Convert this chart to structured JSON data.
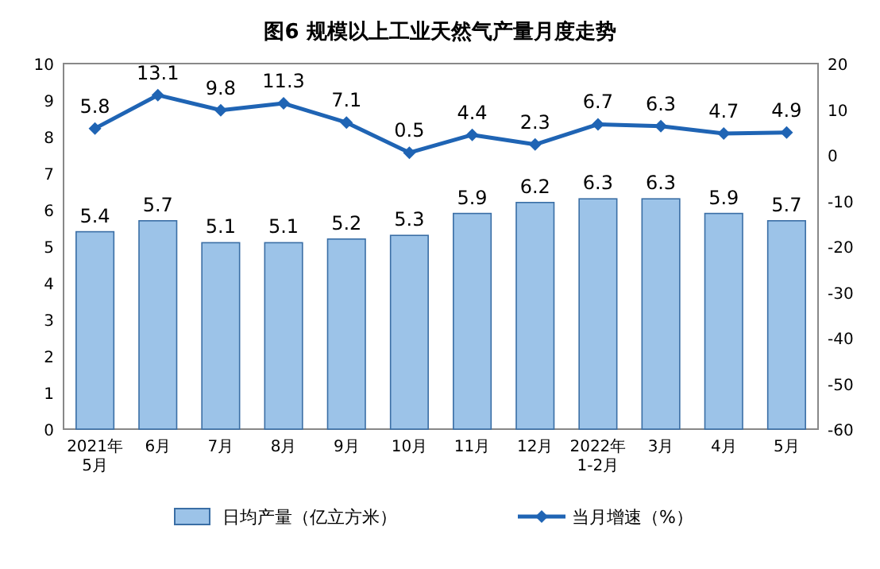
{
  "chart_data": {
    "type": "bar",
    "title": "图6  规模以上工业天然气产量月度走势",
    "categories": [
      "2021年\n5月",
      "6月",
      "7月",
      "8月",
      "9月",
      "10月",
      "11月",
      "12月",
      "2022年\n1-2月",
      "3月",
      "4月",
      "5月"
    ],
    "series": [
      {
        "name": "日均产量（亿立方米）",
        "color": "#9cc3e8",
        "values": [
          5.4,
          5.7,
          5.1,
          5.1,
          5.2,
          5.3,
          5.9,
          6.2,
          6.3,
          6.3,
          5.9,
          5.7
        ]
      },
      {
        "name": "当月增速（%）",
        "type": "line",
        "axis": "y2",
        "color": "#1f64b4",
        "values": [
          5.8,
          13.1,
          9.8,
          11.3,
          7.1,
          0.5,
          4.4,
          2.3,
          6.7,
          6.3,
          4.7,
          4.9
        ]
      }
    ],
    "ylim": [
      0,
      10
    ],
    "yticks": [
      0,
      1,
      2,
      3,
      4,
      5,
      6,
      7,
      8,
      9,
      10
    ],
    "y2lim": [
      -60,
      20
    ],
    "y2ticks": [
      -60,
      -50,
      -40,
      -30,
      -20,
      -10,
      0,
      10,
      20
    ],
    "marker": "diamond",
    "data_labels": true,
    "legend": "bottom",
    "grid": false
  }
}
